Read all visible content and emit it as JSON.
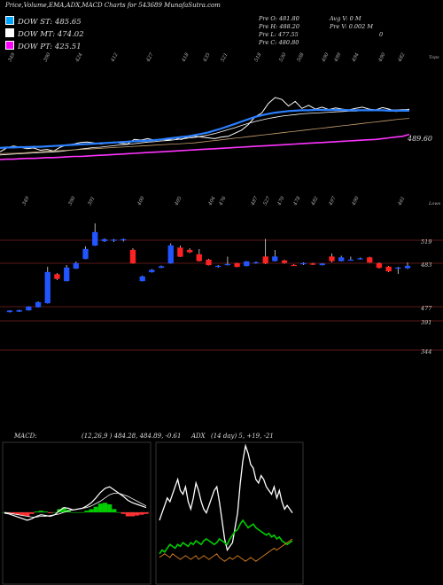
{
  "header": {
    "title": "Price,Volume,EMA,ADX,MACD Charts for 543689 MunafaSutra.com"
  },
  "legend": [
    {
      "label": "DOW ST: 485.65",
      "color": "#00a6ff"
    },
    {
      "label": "DOW MT: 474.02",
      "color": "#ffffff"
    },
    {
      "label": "DOW PT: 425.51",
      "color": "#ff00ff"
    }
  ],
  "info": {
    "col1": [
      "Pre O: 481.80",
      "Pre H: 488.20",
      "Pre L: 477.55",
      "Pre C: 480.80"
    ],
    "col2": [
      "Avg V: 0 M",
      "Pre V: 0.002 M",
      "0"
    ]
  },
  "chart_data": [
    {
      "type": "line",
      "title": "",
      "top_tick_labels": [
        "349",
        "390",
        "424",
        "412",
        "427",
        "418",
        "435",
        "521",
        "518",
        "530",
        "508",
        "490",
        "499",
        "494",
        "490",
        "482"
      ],
      "bottom_tick_labels": [
        "349",
        "390",
        "391",
        "400",
        "405",
        "404",
        "476",
        "487",
        "527",
        "470",
        "478",
        "482",
        "497",
        "490",
        "461"
      ],
      "corner_labels": {
        "top_right": "Tops",
        "bottom_right": "Lows"
      },
      "price_label": "489.60",
      "series": [
        {
          "color": "#ffffff",
          "values": [
            380,
            390,
            395,
            392,
            388,
            390,
            384,
            386,
            382,
            392,
            398,
            400,
            404,
            405,
            403,
            400,
            402,
            405,
            402,
            400,
            412,
            410,
            414,
            410,
            412,
            410,
            415,
            412,
            418,
            420,
            418,
            416,
            414,
            418,
            420,
            428,
            436,
            450,
            470,
            480,
            505,
            520,
            515,
            498,
            510,
            492,
            500,
            490,
            495,
            489,
            493,
            490,
            488,
            492,
            495,
            490,
            488,
            494,
            490,
            484,
            486,
            490
          ]
        },
        {
          "color": "#ffffff",
          "values": [
            372,
            373,
            374,
            375,
            376,
            377,
            378,
            379,
            380,
            381,
            383,
            385,
            387,
            389,
            391,
            392,
            394,
            396,
            398,
            399,
            401,
            403,
            405,
            406,
            408,
            409,
            411,
            413,
            415,
            417,
            420,
            423,
            427,
            432,
            437,
            442,
            448,
            453,
            458,
            462,
            466,
            469,
            472,
            474,
            476,
            478,
            479,
            480,
            481,
            482,
            483,
            484,
            485,
            485,
            486,
            486,
            487,
            487,
            488,
            488,
            489,
            489
          ]
        },
        {
          "color": "#2a7fff",
          "values": [
            390,
            391,
            391,
            392,
            392,
            393,
            393,
            394,
            395,
            396,
            397,
            398,
            399,
            400,
            401,
            402,
            403,
            404,
            405,
            406,
            407,
            408,
            409,
            410,
            412,
            414,
            416,
            418,
            420,
            423,
            426,
            430,
            435,
            440,
            446,
            452,
            458,
            464,
            470,
            474,
            478,
            481,
            483,
            485,
            486,
            487,
            487,
            488,
            488,
            488,
            488,
            488,
            487,
            487,
            487,
            487,
            487,
            487,
            486,
            486,
            486,
            486
          ]
        },
        {
          "color": "#c8a070",
          "values": [
            375,
            376,
            376,
            377,
            378,
            379,
            380,
            381,
            382,
            383,
            384,
            385,
            386,
            387,
            388,
            389,
            390,
            391,
            392,
            393,
            394,
            395,
            396,
            397,
            398,
            399,
            400,
            401,
            402,
            403,
            405,
            407,
            409,
            411,
            413,
            415,
            417,
            419,
            421,
            423,
            425,
            427,
            429,
            431,
            433,
            435,
            437,
            439,
            441,
            443,
            445,
            447,
            449,
            451,
            453,
            455,
            457,
            459,
            461,
            463,
            465,
            466
          ]
        },
        {
          "color": "#ff33ff",
          "values": [
            360,
            361,
            361,
            362,
            363,
            363,
            364,
            365,
            365,
            366,
            367,
            368,
            368,
            369,
            370,
            371,
            372,
            373,
            374,
            375,
            376,
            377,
            378,
            379,
            380,
            381,
            382,
            383,
            384,
            385,
            386,
            387,
            388,
            389,
            390,
            391,
            392,
            393,
            394,
            395,
            396,
            397,
            398,
            399,
            400,
            401,
            402,
            403,
            404,
            405,
            406,
            407,
            408,
            409,
            410,
            411,
            412,
            414,
            416,
            418,
            420,
            425
          ]
        }
      ]
    },
    {
      "type": "candlestick",
      "title": "",
      "right_labels": [
        "519",
        "483",
        "477",
        "391",
        "344"
      ],
      "candles": [
        {
          "o": 380,
          "c": 383,
          "h": 384,
          "l": 379
        },
        {
          "o": 381,
          "c": 384,
          "h": 385,
          "l": 380
        },
        {
          "o": 384,
          "c": 392,
          "h": 393,
          "l": 383
        },
        {
          "o": 391,
          "c": 402,
          "h": 404,
          "l": 390
        },
        {
          "o": 400,
          "c": 470,
          "h": 482,
          "l": 399
        },
        {
          "o": 465,
          "c": 455,
          "h": 468,
          "l": 452
        },
        {
          "o": 450,
          "c": 480,
          "h": 486,
          "l": 449
        },
        {
          "o": 478,
          "c": 490,
          "h": 494,
          "l": 477
        },
        {
          "o": 500,
          "c": 522,
          "h": 528,
          "l": 499
        },
        {
          "o": 530,
          "c": 560,
          "h": 580,
          "l": 529
        },
        {
          "o": 540,
          "c": 544,
          "h": 546,
          "l": 538
        },
        {
          "o": 541,
          "c": 543,
          "h": 545,
          "l": 538
        },
        {
          "o": 542,
          "c": 544,
          "h": 546,
          "l": 539
        },
        {
          "o": 520,
          "c": 490,
          "h": 524,
          "l": 489
        },
        {
          "o": 450,
          "c": 460,
          "h": 462,
          "l": 449
        },
        {
          "o": 470,
          "c": 475,
          "h": 477,
          "l": 469
        },
        {
          "o": 480,
          "c": 483,
          "h": 485,
          "l": 479
        },
        {
          "o": 490,
          "c": 530,
          "h": 535,
          "l": 489
        },
        {
          "o": 525,
          "c": 505,
          "h": 530,
          "l": 504
        },
        {
          "o": 520,
          "c": 515,
          "h": 524,
          "l": 513
        },
        {
          "o": 510,
          "c": 495,
          "h": 522,
          "l": 494
        },
        {
          "o": 498,
          "c": 486,
          "h": 500,
          "l": 485
        },
        {
          "o": 482,
          "c": 484,
          "h": 486,
          "l": 480
        },
        {
          "o": 486,
          "c": 488,
          "h": 505,
          "l": 485
        },
        {
          "o": 490,
          "c": 482,
          "h": 491,
          "l": 481
        },
        {
          "o": 484,
          "c": 494,
          "h": 495,
          "l": 483
        },
        {
          "o": 490,
          "c": 492,
          "h": 494,
          "l": 489
        },
        {
          "o": 505,
          "c": 490,
          "h": 545,
          "l": 488
        },
        {
          "o": 495,
          "c": 505,
          "h": 520,
          "l": 494
        },
        {
          "o": 496,
          "c": 491,
          "h": 498,
          "l": 489
        },
        {
          "o": 486,
          "c": 485,
          "h": 488,
          "l": 484
        },
        {
          "o": 488,
          "c": 490,
          "h": 492,
          "l": 486
        },
        {
          "o": 489,
          "c": 487,
          "h": 491,
          "l": 486
        },
        {
          "o": 486,
          "c": 489,
          "h": 490,
          "l": 485
        },
        {
          "o": 505,
          "c": 495,
          "h": 512,
          "l": 492
        },
        {
          "o": 495,
          "c": 503,
          "h": 507,
          "l": 494
        },
        {
          "o": 497,
          "c": 498,
          "h": 505,
          "l": 496
        },
        {
          "o": 500,
          "c": 501,
          "h": 503,
          "l": 498
        },
        {
          "o": 503,
          "c": 492,
          "h": 505,
          "l": 491
        },
        {
          "o": 490,
          "c": 480,
          "h": 492,
          "l": 478
        },
        {
          "o": 482,
          "c": 472,
          "h": 484,
          "l": 470
        },
        {
          "o": 478,
          "c": 480,
          "h": 482,
          "l": 466
        },
        {
          "o": 479,
          "c": 484,
          "h": 492,
          "l": 477
        }
      ]
    },
    {
      "type": "line",
      "title": "MACD:",
      "params_text": "(12,26,9 ) 484.28, 484.89, -0.61",
      "series": [
        {
          "name": "macd",
          "color": "#ffffff",
          "values": [
            -1,
            -2,
            -4,
            -6,
            -8,
            -10,
            -8,
            -5,
            -3,
            -4,
            -5,
            -3,
            2,
            6,
            5,
            3,
            4,
            5,
            8,
            12,
            18,
            25,
            30,
            32,
            28,
            24,
            20,
            15,
            12,
            10,
            8,
            6
          ]
        },
        {
          "name": "signal",
          "color": "#ffffff",
          "values": [
            0,
            -1,
            -2,
            -3,
            -4,
            -5,
            -6,
            -6,
            -5,
            -5,
            -4,
            -3,
            -2,
            0,
            2,
            3,
            4,
            5,
            6,
            8,
            11,
            14,
            18,
            22,
            24,
            24,
            22,
            20,
            17,
            14,
            11,
            8
          ]
        },
        {
          "name": "histogram",
          "color": "#00cc00",
          "values": [
            0,
            -1,
            -2,
            -3,
            -4,
            -5,
            -2,
            1,
            2,
            1,
            -1,
            0,
            4,
            6,
            3,
            0,
            0,
            0,
            2,
            4,
            7,
            11,
            12,
            10,
            4,
            0,
            -2,
            -5,
            -5,
            -4,
            -3,
            -2
          ]
        }
      ]
    },
    {
      "type": "line",
      "title": "ADX",
      "params_text": "(14 day) 5, +19, -21",
      "series": [
        {
          "name": "adx",
          "color": "#ffffff",
          "values": [
            30,
            34,
            38,
            42,
            40,
            44,
            48,
            52,
            46,
            44,
            48,
            40,
            36,
            42,
            50,
            46,
            40,
            36,
            34,
            38,
            42,
            46,
            48,
            40,
            30,
            20,
            14,
            16,
            18,
            26,
            34,
            50,
            62,
            70,
            66,
            60,
            58,
            52,
            50,
            54,
            52,
            48,
            46,
            44,
            48,
            42,
            46,
            40,
            36,
            38,
            36,
            34
          ]
        },
        {
          "name": "+di",
          "color": "#00cc00",
          "values": [
            12,
            14,
            13,
            15,
            17,
            16,
            15,
            17,
            16,
            18,
            17,
            16,
            18,
            17,
            19,
            18,
            17,
            19,
            20,
            19,
            18,
            17,
            18,
            20,
            19,
            18,
            17,
            20,
            22,
            24,
            25,
            28,
            30,
            28,
            26,
            27,
            28,
            26,
            25,
            24,
            23,
            22,
            23,
            21,
            22,
            20,
            21,
            19,
            18,
            17,
            18,
            19
          ]
        },
        {
          "name": "-di",
          "color": "#cc7722",
          "values": [
            10,
            11,
            12,
            11,
            10,
            12,
            11,
            10,
            9,
            10,
            11,
            10,
            9,
            10,
            11,
            9,
            10,
            11,
            10,
            9,
            10,
            11,
            12,
            10,
            9,
            8,
            9,
            10,
            9,
            10,
            11,
            10,
            9,
            8,
            9,
            10,
            9,
            8,
            9,
            10,
            11,
            12,
            13,
            14,
            15,
            14,
            15,
            16,
            17,
            18,
            19,
            20
          ]
        }
      ]
    }
  ]
}
